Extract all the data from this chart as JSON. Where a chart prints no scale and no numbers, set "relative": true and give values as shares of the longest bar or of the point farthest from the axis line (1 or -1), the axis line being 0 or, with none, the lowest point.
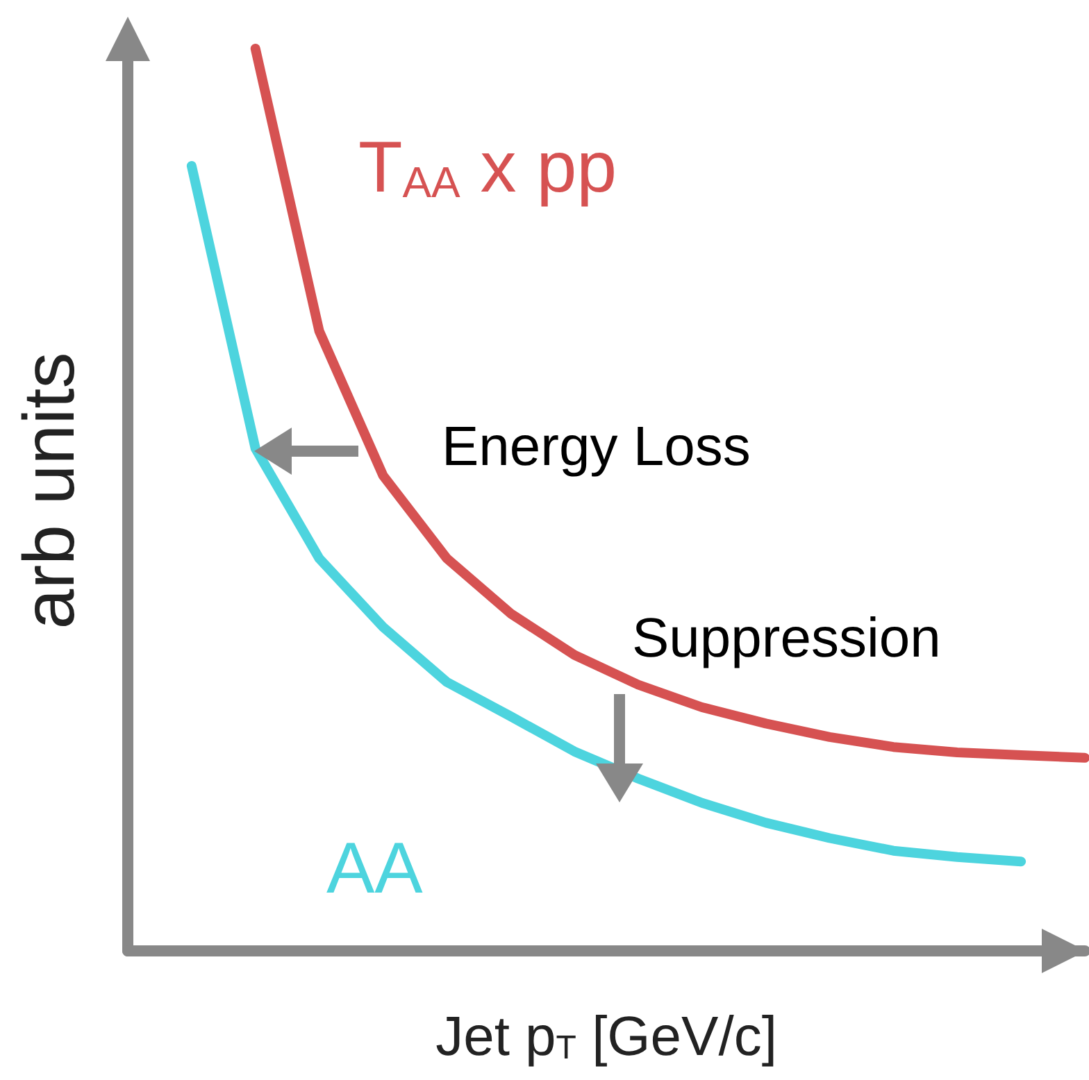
{
  "chart_data": {
    "type": "line",
    "relative": true,
    "xlabel": "Jet p$_{T}$ [GeV/c]",
    "ylabel": "arb units",
    "line_style": "solid",
    "categories": [
      null,
      null,
      null,
      null,
      null,
      null,
      null,
      null,
      null,
      null,
      null,
      null,
      null,
      null,
      null,
      null
    ],
    "series": [
      {
        "name": "T$_{AA}$ x pp",
        "color": "#d65252",
        "values": [
          null,
          null,
          1.0,
          0.687,
          0.527,
          0.435,
          0.374,
          0.328,
          0.295,
          0.27,
          0.252,
          0.237,
          0.226,
          0.22,
          0.217,
          0.214
        ]
      },
      {
        "name": "AA",
        "color": "#4dd4de",
        "values": [
          null,
          0.87,
          0.557,
          0.435,
          0.359,
          0.298,
          0.26,
          0.221,
          0.191,
          0.164,
          0.142,
          0.125,
          0.111,
          0.104,
          0.099,
          null
        ]
      }
    ],
    "annotations": [
      "Energy Loss",
      "Suppression"
    ]
  }
}
